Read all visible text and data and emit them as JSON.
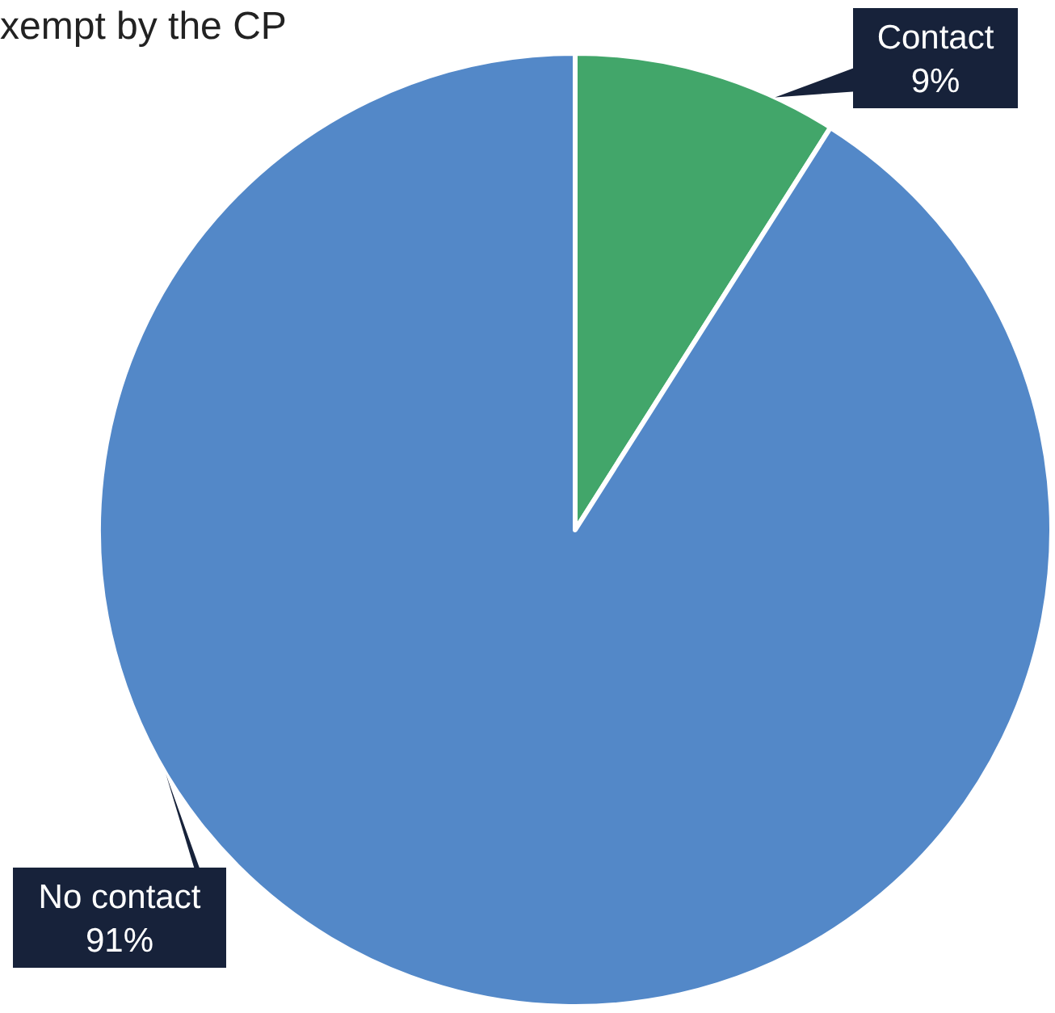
{
  "chart_data": {
    "type": "pie",
    "title": "xempt by the CP",
    "categories": [
      "Contact",
      "No contact"
    ],
    "values": [
      9,
      91
    ],
    "colors": [
      "#42a66a",
      "#5388c8"
    ],
    "value_labels": [
      "9%",
      "91%"
    ]
  }
}
